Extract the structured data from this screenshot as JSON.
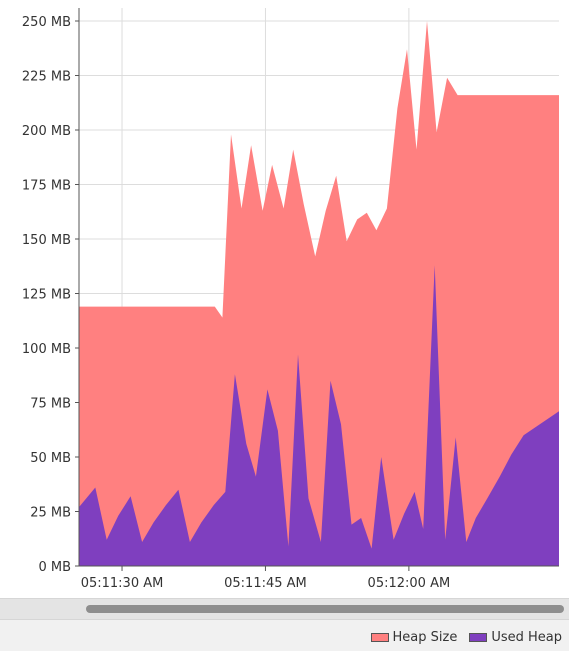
{
  "chart_data": {
    "type": "area",
    "title": "",
    "xlabel": "",
    "ylabel": "",
    "ylim": [
      0,
      250
    ],
    "y_ticks": [
      "0 MB",
      "25 MB",
      "50 MB",
      "75 MB",
      "100 MB",
      "125 MB",
      "150 MB",
      "175 MB",
      "200 MB",
      "225 MB",
      "250 MB"
    ],
    "x_ticks": [
      "05:11:30 AM",
      "05:11:45 AM",
      "05:12:00 AM"
    ],
    "x_tick_seconds": [
      30,
      45,
      60
    ],
    "xlim_seconds": [
      25.5,
      75.7
    ],
    "grid": true,
    "legend_position": "bottom-right",
    "series": [
      {
        "name": "Heap Size",
        "color": "#ff8080",
        "points": [
          [
            25.5,
            119
          ],
          [
            39.7,
            119
          ],
          [
            40.5,
            114
          ],
          [
            41.4,
            198
          ],
          [
            42.5,
            164
          ],
          [
            43.5,
            193
          ],
          [
            44.7,
            163
          ],
          [
            45.7,
            184
          ],
          [
            46.9,
            164
          ],
          [
            47.9,
            191
          ],
          [
            49.0,
            166
          ],
          [
            50.2,
            142
          ],
          [
            51.3,
            163
          ],
          [
            52.4,
            179
          ],
          [
            53.5,
            149
          ],
          [
            54.6,
            159
          ],
          [
            55.6,
            162
          ],
          [
            56.6,
            154
          ],
          [
            57.7,
            164
          ],
          [
            58.8,
            210
          ],
          [
            59.8,
            237
          ],
          [
            60.8,
            191
          ],
          [
            61.9,
            250
          ],
          [
            62.9,
            199
          ],
          [
            64.0,
            224
          ],
          [
            65.1,
            216
          ],
          [
            75.7,
            216
          ]
        ]
      },
      {
        "name": "Used Heap",
        "color": "#7f3fbf",
        "points": [
          [
            25.5,
            27
          ],
          [
            27.2,
            36
          ],
          [
            28.4,
            12
          ],
          [
            29.6,
            23
          ],
          [
            30.9,
            32
          ],
          [
            32.1,
            11
          ],
          [
            33.3,
            20
          ],
          [
            34.6,
            28
          ],
          [
            35.9,
            35
          ],
          [
            37.1,
            11
          ],
          [
            38.3,
            20
          ],
          [
            39.6,
            28
          ],
          [
            40.8,
            34
          ],
          [
            41.8,
            88
          ],
          [
            43.0,
            56
          ],
          [
            44.0,
            41
          ],
          [
            45.2,
            81
          ],
          [
            46.3,
            62
          ],
          [
            47.4,
            9
          ],
          [
            48.4,
            97
          ],
          [
            49.5,
            31
          ],
          [
            50.8,
            11
          ],
          [
            51.8,
            85
          ],
          [
            52.9,
            65
          ],
          [
            54.0,
            19
          ],
          [
            55.0,
            22
          ],
          [
            56.1,
            8
          ],
          [
            57.1,
            50
          ],
          [
            58.4,
            12
          ],
          [
            59.5,
            24
          ],
          [
            60.6,
            34
          ],
          [
            61.5,
            17
          ],
          [
            62.7,
            138
          ],
          [
            63.8,
            12
          ],
          [
            64.9,
            59
          ],
          [
            66.0,
            11
          ],
          [
            67.0,
            22
          ],
          [
            68.2,
            31
          ],
          [
            69.5,
            41
          ],
          [
            70.7,
            51
          ],
          [
            72.0,
            60
          ],
          [
            75.7,
            71
          ]
        ]
      }
    ]
  },
  "scrollbar": {
    "label": "horizontal-scroll"
  }
}
